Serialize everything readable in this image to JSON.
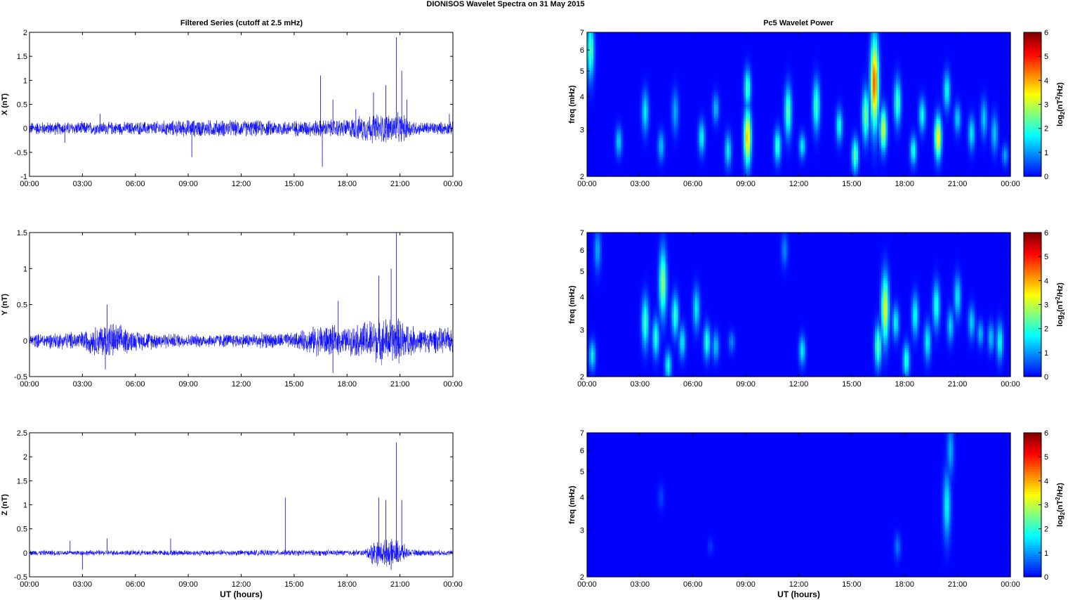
{
  "figure": {
    "title": "DIONISOS Wavelet Spectra on 31 May       2015",
    "left_title": "Filtered Series (cutoff at 2.5 mHz)",
    "right_title": "Pc5 Wavelet Power",
    "xlabel": "UT (hours)"
  },
  "colors": {
    "trace": "#0000ff",
    "frame": "#000000"
  },
  "chart_data": [
    {
      "type": "line",
      "id": "x-series",
      "ylabel": "X (nT)",
      "xlim": [
        0,
        24
      ],
      "ylim": [
        -1,
        2
      ],
      "xticks": [
        "00:00",
        "03:00",
        "06:00",
        "09:00",
        "12:00",
        "15:00",
        "18:00",
        "21:00",
        "00:00"
      ],
      "yticks": [
        -1,
        -0.5,
        0,
        0.5,
        1,
        1.5,
        2
      ],
      "ytick_labels": [
        "-1",
        "-0.5",
        "0",
        "0.5",
        "1",
        "1.5",
        "2"
      ],
      "noise_envelope": [
        [
          0,
          0.15
        ],
        [
          6,
          0.15
        ],
        [
          9,
          0.2
        ],
        [
          15,
          0.18
        ],
        [
          18,
          0.22
        ],
        [
          19.5,
          0.35
        ],
        [
          21,
          0.35
        ],
        [
          22,
          0.15
        ],
        [
          24,
          0.15
        ]
      ],
      "spikes": [
        [
          2.0,
          -0.3
        ],
        [
          4.0,
          0.3
        ],
        [
          9.2,
          -0.6
        ],
        [
          16.5,
          1.1
        ],
        [
          16.6,
          -0.8
        ],
        [
          17.2,
          0.6
        ],
        [
          18.5,
          0.4
        ],
        [
          19.5,
          0.75
        ],
        [
          20.2,
          0.9
        ],
        [
          20.8,
          1.9
        ],
        [
          21.1,
          1.2
        ],
        [
          21.4,
          0.6
        ],
        [
          23.8,
          0.3
        ]
      ]
    },
    {
      "type": "line",
      "id": "y-series",
      "ylabel": "Y (nT)",
      "xlim": [
        0,
        24
      ],
      "ylim": [
        -0.5,
        1.5
      ],
      "xticks": [
        "00:00",
        "03:00",
        "06:00",
        "09:00",
        "12:00",
        "15:00",
        "18:00",
        "21:00",
        "00:00"
      ],
      "yticks": [
        -0.5,
        0,
        0.5,
        1,
        1.5
      ],
      "ytick_labels": [
        "-0.5",
        "0",
        "0.5",
        "1",
        "1.5"
      ],
      "noise_envelope": [
        [
          0,
          0.1
        ],
        [
          3,
          0.15
        ],
        [
          4.5,
          0.3
        ],
        [
          6,
          0.15
        ],
        [
          9,
          0.1
        ],
        [
          15,
          0.12
        ],
        [
          16.5,
          0.25
        ],
        [
          18,
          0.2
        ],
        [
          19.5,
          0.35
        ],
        [
          21,
          0.35
        ],
        [
          22,
          0.18
        ],
        [
          24,
          0.2
        ]
      ],
      "spikes": [
        [
          4.4,
          0.5
        ],
        [
          4.3,
          -0.4
        ],
        [
          17.5,
          0.55
        ],
        [
          17.2,
          -0.45
        ],
        [
          19.8,
          0.9
        ],
        [
          20.5,
          1.0
        ],
        [
          20.8,
          1.5
        ],
        [
          21.2,
          -0.2
        ],
        [
          24,
          0.35
        ]
      ]
    },
    {
      "type": "line",
      "id": "z-series",
      "ylabel": "Z (nT)",
      "xlim": [
        0,
        24
      ],
      "ylim": [
        -0.5,
        2.5
      ],
      "xticks": [
        "00:00",
        "03:00",
        "06:00",
        "09:00",
        "12:00",
        "15:00",
        "18:00",
        "21:00",
        "00:00"
      ],
      "xlabel": "UT (hours)",
      "yticks": [
        -0.5,
        0,
        0.5,
        1,
        1.5,
        2,
        2.5
      ],
      "ytick_labels": [
        "-0.5",
        "0",
        "0.5",
        "1",
        "1.5",
        "2",
        "2.5"
      ],
      "noise_envelope": [
        [
          0,
          0.06
        ],
        [
          19,
          0.07
        ],
        [
          19.5,
          0.3
        ],
        [
          21,
          0.3
        ],
        [
          21.5,
          0.08
        ],
        [
          24,
          0.06
        ]
      ],
      "spikes": [
        [
          2.3,
          0.25
        ],
        [
          3.0,
          -0.35
        ],
        [
          4.4,
          0.3
        ],
        [
          8.0,
          0.3
        ],
        [
          14.5,
          1.15
        ],
        [
          19.8,
          1.15
        ],
        [
          20.2,
          1.1
        ],
        [
          20.8,
          2.3
        ],
        [
          21.1,
          1.1
        ],
        [
          20.5,
          -0.35
        ]
      ]
    },
    {
      "type": "heatmap",
      "id": "x-wavelet",
      "ylabel": "freq (mHz)",
      "xlim": [
        0,
        24
      ],
      "ylim": [
        2,
        7
      ],
      "yscale": "log",
      "clim": [
        0,
        6
      ],
      "colorbar_label": "log2(nT2/Hz)",
      "colorbar_ticks": [
        "0",
        "1",
        "2",
        "3",
        "4",
        "5",
        "6"
      ],
      "yticks": [
        2,
        3,
        4,
        5,
        6,
        7
      ],
      "ytick_labels": [
        "2",
        "3",
        "4",
        "5",
        "6",
        "7"
      ],
      "xticks": [
        "00:00",
        "03:00",
        "06:00",
        "09:00",
        "12:00",
        "15:00",
        "18:00",
        "21:00",
        "00:00"
      ],
      "blobs": [
        [
          0.2,
          6.0,
          1.4,
          2.5
        ],
        [
          1.8,
          2.7,
          0.7,
          1.6
        ],
        [
          3.3,
          3.5,
          1.0,
          1.8
        ],
        [
          4.2,
          2.6,
          0.7,
          1.5
        ],
        [
          5.0,
          3.5,
          1.0,
          1.3
        ],
        [
          6.5,
          2.8,
          0.8,
          1.9
        ],
        [
          7.3,
          3.6,
          0.7,
          1.4
        ],
        [
          8.0,
          2.5,
          0.8,
          1.8
        ],
        [
          9.1,
          2.8,
          1.3,
          4.3
        ],
        [
          9.1,
          4.3,
          0.9,
          2.4
        ],
        [
          10.8,
          2.6,
          0.8,
          2.3
        ],
        [
          11.4,
          3.5,
          1.2,
          2.6
        ],
        [
          12.2,
          2.6,
          0.6,
          1.8
        ],
        [
          13.0,
          3.7,
          1.2,
          2.4
        ],
        [
          14.3,
          3.1,
          0.8,
          2.0
        ],
        [
          15.2,
          2.4,
          0.8,
          2.6
        ],
        [
          15.8,
          3.4,
          1.2,
          2.8
        ],
        [
          16.3,
          4.5,
          2.1,
          5.0
        ],
        [
          16.8,
          3.0,
          1.0,
          3.5
        ],
        [
          17.6,
          3.8,
          1.1,
          2.4
        ],
        [
          18.5,
          2.5,
          0.7,
          2.1
        ],
        [
          19.0,
          3.4,
          0.8,
          2.0
        ],
        [
          19.9,
          2.8,
          1.0,
          4.0
        ],
        [
          20.4,
          4.2,
          0.9,
          2.0
        ],
        [
          21.0,
          3.3,
          0.7,
          1.6
        ],
        [
          21.8,
          2.9,
          0.8,
          1.8
        ],
        [
          22.5,
          3.3,
          0.9,
          1.5
        ],
        [
          23.1,
          2.9,
          0.9,
          1.5
        ],
        [
          23.7,
          2.4,
          0.5,
          1.2
        ]
      ]
    },
    {
      "type": "heatmap",
      "id": "y-wavelet",
      "ylabel": "freq (mHz)",
      "xlim": [
        0,
        24
      ],
      "ylim": [
        2,
        7
      ],
      "yscale": "log",
      "clim": [
        0,
        6
      ],
      "colorbar_label": "log2(nT2/Hz)",
      "colorbar_ticks": [
        "0",
        "1",
        "2",
        "3",
        "4",
        "5",
        "6"
      ],
      "yticks": [
        2,
        3,
        4,
        5,
        6,
        7
      ],
      "ytick_labels": [
        "2",
        "3",
        "4",
        "5",
        "6",
        "7"
      ],
      "xticks": [
        "00:00",
        "03:00",
        "06:00",
        "09:00",
        "12:00",
        "15:00",
        "18:00",
        "21:00",
        "00:00"
      ],
      "blobs": [
        [
          0.3,
          2.4,
          0.7,
          1.8
        ],
        [
          0.6,
          6.0,
          1.0,
          1.3
        ],
        [
          3.3,
          3.2,
          1.2,
          2.4
        ],
        [
          3.9,
          2.8,
          0.9,
          2.2
        ],
        [
          4.3,
          4.5,
          1.6,
          3.0
        ],
        [
          4.6,
          2.2,
          0.7,
          2.0
        ],
        [
          5.0,
          3.4,
          1.0,
          2.3
        ],
        [
          5.4,
          2.7,
          0.8,
          1.8
        ],
        [
          6.2,
          3.6,
          1.0,
          1.8
        ],
        [
          6.8,
          2.7,
          0.8,
          2.2
        ],
        [
          7.3,
          2.6,
          0.7,
          1.5
        ],
        [
          8.2,
          2.7,
          0.5,
          1.0
        ],
        [
          11.2,
          6.0,
          0.8,
          1.0
        ],
        [
          12.2,
          2.5,
          0.7,
          1.8
        ],
        [
          16.5,
          2.6,
          1.0,
          2.6
        ],
        [
          16.9,
          3.6,
          1.6,
          3.6
        ],
        [
          17.5,
          3.2,
          0.8,
          1.9
        ],
        [
          18.1,
          2.3,
          0.8,
          2.2
        ],
        [
          18.6,
          3.4,
          1.0,
          2.0
        ],
        [
          19.3,
          2.7,
          0.9,
          1.9
        ],
        [
          19.8,
          3.7,
          1.1,
          2.2
        ],
        [
          20.6,
          3.1,
          0.8,
          1.6
        ],
        [
          21.0,
          4.0,
          1.0,
          1.8
        ],
        [
          21.8,
          3.2,
          0.8,
          1.6
        ],
        [
          22.3,
          2.9,
          0.6,
          1.4
        ],
        [
          22.9,
          2.8,
          0.7,
          1.5
        ],
        [
          23.4,
          2.7,
          0.9,
          2.0
        ]
      ]
    },
    {
      "type": "heatmap",
      "id": "z-wavelet",
      "ylabel": "freq (mHz)",
      "xlabel": "UT (hours)",
      "xlim": [
        0,
        24
      ],
      "ylim": [
        2,
        7
      ],
      "yscale": "log",
      "clim": [
        0,
        6
      ],
      "colorbar_label": "log2(nT2/Hz)",
      "colorbar_ticks": [
        "0",
        "1",
        "2",
        "3",
        "4",
        "5",
        "6"
      ],
      "yticks": [
        2,
        3,
        4,
        5,
        6,
        7
      ],
      "ytick_labels": [
        "2",
        "3",
        "4",
        "5",
        "6",
        "7"
      ],
      "xticks": [
        "00:00",
        "03:00",
        "06:00",
        "09:00",
        "12:00",
        "15:00",
        "18:00",
        "21:00",
        "00:00"
      ],
      "blobs": [
        [
          20.4,
          3.7,
          1.6,
          1.9
        ],
        [
          20.6,
          6.0,
          1.2,
          1.3
        ],
        [
          17.6,
          2.6,
          0.6,
          0.9
        ],
        [
          4.2,
          4.0,
          0.6,
          0.5
        ],
        [
          7.0,
          2.6,
          0.4,
          0.4
        ]
      ]
    }
  ]
}
